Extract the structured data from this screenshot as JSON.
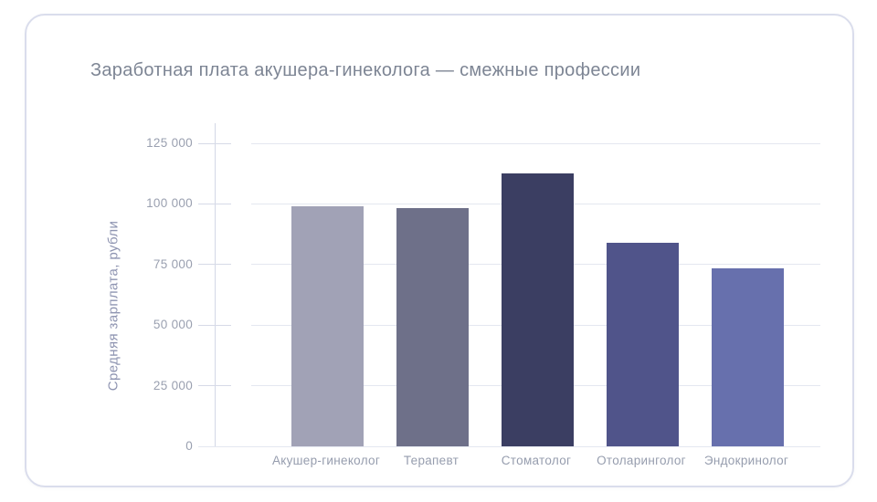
{
  "chart_data": {
    "type": "bar",
    "title": "Заработная плата акушера-гинеколога — смежные профессии",
    "xlabel": "",
    "ylabel": "Средняя зарплата, рубли",
    "categories": [
      "Акушер-гинеколог",
      "Терапевт",
      "Стоматолог",
      "Отоларинголог",
      "Эндокринолог"
    ],
    "values": [
      99000,
      98300,
      112500,
      84000,
      73500
    ],
    "bar_colors": [
      "#a1a2b6",
      "#6e7089",
      "#3b3e62",
      "#50548a",
      "#6770ad"
    ],
    "ylim": [
      0,
      133300
    ],
    "ytick_step": 25000,
    "ytick_labels": [
      "0",
      "25 000",
      "50 000",
      "75 000",
      "100 000",
      "125 000"
    ],
    "grid": "horizontal",
    "legend": "none",
    "colors": {
      "background": "#ffffff",
      "card_border": "#daddec",
      "title_text": "#7d8594",
      "axis_title_text": "#8e94b1",
      "tick_text": "#9aa0b0",
      "gridline": "#e4e7f0",
      "axis_line": "#d3d8e6"
    }
  }
}
